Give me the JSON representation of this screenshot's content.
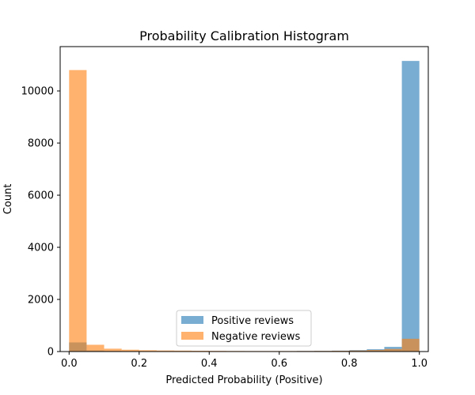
{
  "chart_data": {
    "type": "bar",
    "title": "Probability Calibration Histogram",
    "xlabel": "Predicted Probability (Positive)",
    "ylabel": "Count",
    "xlim": [
      -0.0255,
      1.0255
    ],
    "ylim": [
      0,
      11700
    ],
    "xticks": [
      0.0,
      0.2,
      0.4,
      0.6,
      0.8,
      1.0
    ],
    "xtick_labels": [
      "0.0",
      "0.2",
      "0.4",
      "0.6",
      "0.8",
      "1.0"
    ],
    "yticks": [
      0,
      2000,
      4000,
      6000,
      8000,
      10000
    ],
    "ytick_labels": [
      "0",
      "2000",
      "4000",
      "6000",
      "8000",
      "10000"
    ],
    "bin_edges": [
      0.0,
      0.05,
      0.1,
      0.15,
      0.2,
      0.25,
      0.3,
      0.35,
      0.4,
      0.45,
      0.5,
      0.55,
      0.6,
      0.65,
      0.7,
      0.75,
      0.8,
      0.85,
      0.9,
      0.95,
      1.0
    ],
    "series": [
      {
        "name": "Positive reviews",
        "color": "#1f77b4",
        "alpha": 0.6,
        "values": [
          350,
          40,
          25,
          20,
          15,
          15,
          12,
          12,
          12,
          12,
          12,
          15,
          15,
          20,
          25,
          35,
          55,
          90,
          180,
          11150
        ]
      },
      {
        "name": "Negative reviews",
        "color": "#ff7f0e",
        "alpha": 0.6,
        "values": [
          10800,
          260,
          110,
          70,
          50,
          40,
          35,
          30,
          25,
          22,
          20,
          20,
          20,
          22,
          25,
          30,
          40,
          60,
          100,
          490
        ]
      }
    ],
    "legend_position": "lower center",
    "grid": false
  }
}
